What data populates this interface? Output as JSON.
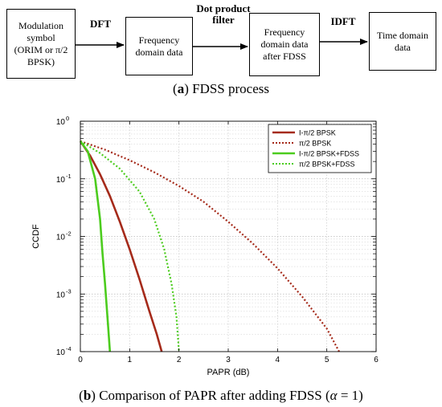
{
  "flow": {
    "boxes": [
      {
        "lines": [
          "Modulation",
          "symbol",
          "(ORIM or  π/2",
          "BPSK)"
        ]
      },
      {
        "lines": [
          "Frequency",
          "domain data"
        ]
      },
      {
        "lines": [
          "Frequency",
          "domain data",
          "after FDSS"
        ]
      },
      {
        "lines": [
          "Time domain",
          "data"
        ]
      }
    ],
    "arrows": [
      {
        "lines": [
          "DFT"
        ]
      },
      {
        "lines": [
          "Dot product",
          "filter"
        ]
      },
      {
        "lines": [
          "IDFT"
        ]
      }
    ],
    "caption": {
      "letter": "a",
      "text": " FDSS process"
    }
  },
  "chart_data": {
    "type": "line",
    "xlabel": "PAPR (dB)",
    "ylabel": "CCDF",
    "xlim": [
      0,
      6
    ],
    "ylim": [
      0.0001,
      1
    ],
    "yscale": "log",
    "xticks": [
      "0",
      "1",
      "2",
      "3",
      "4",
      "5",
      "6"
    ],
    "yticks": [
      {
        "base": "10",
        "exp": "-4"
      },
      {
        "base": "10",
        "exp": "-3"
      },
      {
        "base": "10",
        "exp": "-2"
      },
      {
        "base": "10",
        "exp": "-1"
      },
      {
        "base": "10",
        "exp": "0"
      }
    ],
    "grid": true,
    "legend_position": "top-right",
    "series": [
      {
        "name": "I-π/2 BPSK",
        "color": "#a52a1a",
        "dash": "solid",
        "x": [
          0,
          0.2,
          0.4,
          0.6,
          0.8,
          1.0,
          1.2,
          1.4,
          1.55,
          1.65
        ],
        "y": [
          0.45,
          0.25,
          0.12,
          0.05,
          0.018,
          0.006,
          0.0018,
          0.0005,
          0.0002,
          0.0001
        ]
      },
      {
        "name": "π/2 BPSK",
        "color": "#a52a1a",
        "dash": "dot",
        "x": [
          0,
          0.5,
          1.0,
          1.5,
          2.0,
          2.5,
          3.0,
          3.5,
          4.0,
          4.5,
          5.0,
          5.25
        ],
        "y": [
          0.45,
          0.32,
          0.21,
          0.13,
          0.075,
          0.04,
          0.018,
          0.0075,
          0.0028,
          0.0009,
          0.00025,
          0.0001
        ]
      },
      {
        "name": "I-π/2 BPSK+FDSS",
        "color": "#4ccc1e",
        "dash": "solid",
        "x": [
          0,
          0.15,
          0.3,
          0.4,
          0.45,
          0.5,
          0.55,
          0.6
        ],
        "y": [
          0.45,
          0.3,
          0.1,
          0.02,
          0.005,
          0.0015,
          0.0004,
          0.0001
        ]
      },
      {
        "name": "π/2 BPSK+FDSS",
        "color": "#4ccc1e",
        "dash": "dot",
        "x": [
          0,
          0.4,
          0.8,
          1.2,
          1.5,
          1.7,
          1.85,
          1.95,
          2.0
        ],
        "y": [
          0.45,
          0.28,
          0.15,
          0.06,
          0.02,
          0.006,
          0.0015,
          0.0004,
          0.0001
        ]
      }
    ]
  },
  "caption_b": {
    "letter": "b",
    "text": " Comparison of PAPR after adding FDSS (",
    "alpha": "α",
    "rest": " = 1)"
  }
}
